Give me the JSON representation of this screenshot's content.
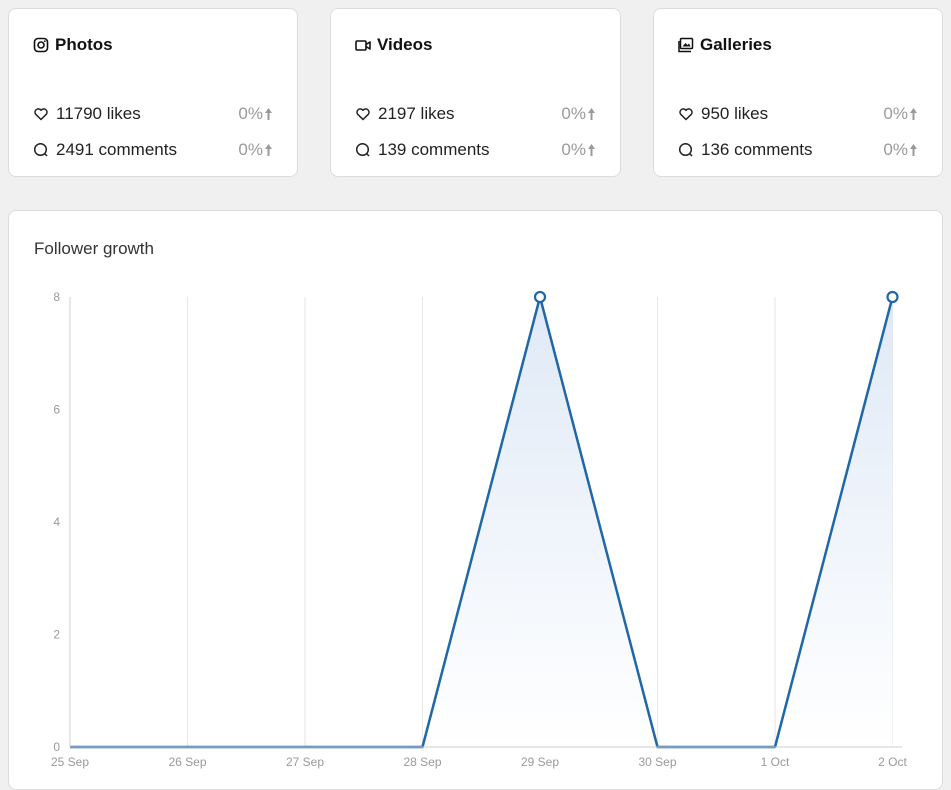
{
  "cards": [
    {
      "title": "Photos",
      "icon": "instagram-icon",
      "likes": "11790 likes",
      "likes_change": "0%",
      "comments": "2491 comments",
      "comments_change": "0%"
    },
    {
      "title": "Videos",
      "icon": "video-camera-icon",
      "likes": "2197 likes",
      "likes_change": "0%",
      "comments": "139 comments",
      "comments_change": "0%"
    },
    {
      "title": "Galleries",
      "icon": "gallery-icon",
      "likes": "950 likes",
      "likes_change": "0%",
      "comments": "136 comments",
      "comments_change": "0%"
    }
  ],
  "chart": {
    "title": "Follower growth"
  },
  "chart_data": {
    "type": "area",
    "title": "Follower growth",
    "x": [
      "25 Sep",
      "26 Sep",
      "27 Sep",
      "28 Sep",
      "29 Sep",
      "30 Sep",
      "1 Oct",
      "2 Oct"
    ],
    "series": [
      {
        "values": [
          0,
          0,
          0,
          0,
          8,
          0,
          0,
          8
        ]
      }
    ],
    "yticks": [
      0,
      2,
      4,
      6,
      8
    ],
    "ylim": [
      0,
      8
    ],
    "grid": "vertical",
    "colors": {
      "line": "#1f67a8",
      "fill": "#e6eef8"
    }
  }
}
